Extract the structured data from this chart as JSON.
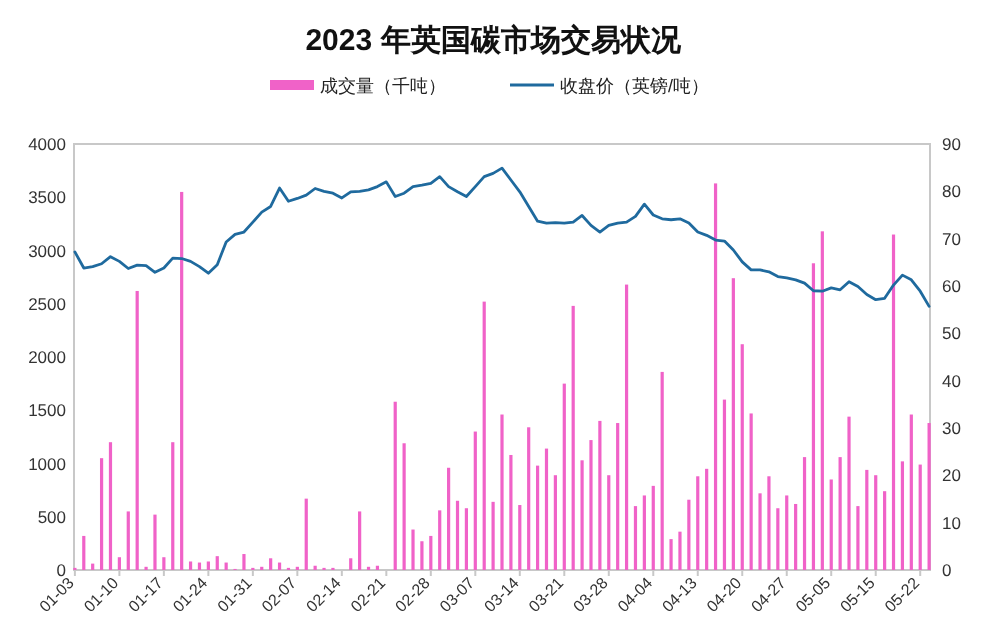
{
  "chart_data": {
    "type": "bar",
    "title": "2023 年英国碳市场交易状况",
    "categories": [
      "01-03",
      null,
      null,
      null,
      null,
      "01-10",
      null,
      null,
      null,
      null,
      "01-17",
      null,
      null,
      null,
      null,
      "01-24",
      null,
      null,
      null,
      null,
      "01-31",
      null,
      null,
      null,
      null,
      "02-07",
      null,
      null,
      null,
      null,
      "02-14",
      null,
      null,
      null,
      null,
      "02-21",
      null,
      null,
      null,
      null,
      "02-28",
      null,
      null,
      null,
      null,
      "03-07",
      null,
      null,
      null,
      null,
      "03-14",
      null,
      null,
      null,
      null,
      "03-21",
      null,
      null,
      null,
      null,
      "03-28",
      null,
      null,
      null,
      null,
      "04-04",
      null,
      null,
      null,
      null,
      "04-13",
      null,
      null,
      null,
      null,
      "04-20",
      null,
      null,
      null,
      null,
      "04-27",
      null,
      null,
      null,
      null,
      "05-05",
      null,
      null,
      null,
      null,
      "05-15",
      null,
      null,
      null,
      null,
      "05-22",
      null
    ],
    "series": [
      {
        "name": "成交量（千吨）",
        "color": "#f062c8",
        "values": [
          20,
          320,
          60,
          1050,
          1200,
          120,
          550,
          2620,
          30,
          520,
          120,
          1200,
          3550,
          80,
          70,
          80,
          130,
          70,
          10,
          150,
          20,
          30,
          110,
          70,
          20,
          30,
          670,
          40,
          20,
          20,
          null,
          110,
          550,
          30,
          40,
          null,
          1580,
          1190,
          380,
          270,
          320,
          560,
          960,
          650,
          580,
          1300,
          2520,
          640,
          1460,
          1080,
          610,
          1340,
          980,
          1140,
          890,
          1750,
          2480,
          1030,
          1220,
          1400,
          890,
          1380,
          2680,
          600,
          700,
          790,
          1860,
          290,
          360,
          660,
          880,
          950,
          3630,
          1600,
          2740,
          2120,
          1470,
          720,
          880,
          580,
          700,
          620,
          1060,
          2880,
          3180,
          850,
          1060,
          1440,
          600,
          940,
          890,
          740,
          3150,
          1020,
          1460,
          990,
          1380
        ]
      },
      {
        "name": "收盘价（英镑/吨）",
        "type": "line",
        "axis": "y2",
        "color": "#1f6a9e",
        "values": [
          67.2,
          63.8,
          64.1,
          64.7,
          66.2,
          65.2,
          63.7,
          64.4,
          64.3,
          62.9,
          63.8,
          65.9,
          65.8,
          65.2,
          64.1,
          62.7,
          64.5,
          69.3,
          70.9,
          71.4,
          73.5,
          75.6,
          76.8,
          80.7,
          77.9,
          78.5,
          79.2,
          80.6,
          80,
          79.6,
          78.6,
          79.9,
          80,
          80.3,
          81,
          82,
          78.9,
          79.6,
          81,
          81.3,
          81.7,
          83.1,
          81,
          79.9,
          78.9,
          81,
          83.1,
          83.8,
          84.9,
          82.4,
          79.9,
          76.8,
          73.7,
          73.3,
          73.4,
          73.3,
          73.5,
          74.9,
          72.8,
          71.4,
          72.8,
          73.3,
          73.5,
          74.7,
          77.3,
          75,
          74.2,
          74,
          74.2,
          73.3,
          71.4,
          70.7,
          69.7,
          69.5,
          67.6,
          65.1,
          63.4,
          63.4,
          63,
          62,
          61.7,
          61.3,
          60.6,
          59,
          58.9,
          59.6,
          59.2,
          60.9,
          59.9,
          58.2,
          57.1,
          57.4,
          60.2,
          62.3,
          61.3,
          58.9,
          55.7
        ]
      }
    ],
    "ylim": [
      0,
      4000
    ],
    "yticks": [
      0,
      500,
      1000,
      1500,
      2000,
      2500,
      3000,
      3500,
      4000
    ],
    "y2lim": [
      0,
      90
    ],
    "y2ticks": [
      0,
      10,
      20,
      30,
      40,
      50,
      60,
      70,
      80,
      90
    ],
    "legend": "top",
    "grid": false,
    "marker": "none",
    "line_style": "solid"
  }
}
